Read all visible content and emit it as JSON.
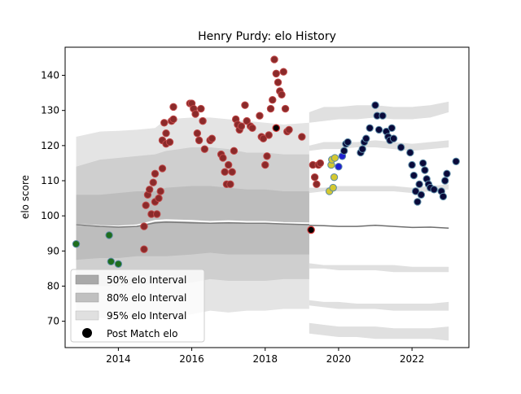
{
  "chart_data": {
    "type": "scatter",
    "title": "Henry Purdy: elo History",
    "xlabel": "",
    "ylabel": "elo score",
    "xlim": [
      2012.55,
      2023.55
    ],
    "ylim": [
      62.5,
      148
    ],
    "xticks": [
      2014,
      2016,
      2018,
      2020,
      2022
    ],
    "yticks": [
      70,
      80,
      90,
      100,
      110,
      120,
      130,
      140
    ],
    "grid": false,
    "legend_position": "lower-left",
    "legend": [
      {
        "label": "50% elo Interval",
        "kind": "patch",
        "color": "#a9a9a9"
      },
      {
        "label": "80% elo Interval",
        "kind": "patch",
        "color": "#c0c0c0"
      },
      {
        "label": "95% elo Interval",
        "kind": "patch",
        "color": "#e0e0e0"
      },
      {
        "label": "Post Match elo",
        "kind": "marker",
        "color": "#000000"
      }
    ],
    "bands_period_1": {
      "x": [
        2012.85,
        2013.5,
        2014.0,
        2014.5,
        2015.0,
        2015.3,
        2016.0,
        2016.5,
        2017.0,
        2017.5,
        2018.0,
        2018.5,
        2019.2
      ],
      "band95_upper": [
        122.5,
        124,
        124.2,
        124.5,
        125,
        127.5,
        128,
        128,
        127.5,
        127,
        126.5,
        126,
        126.5
      ],
      "band95_lower": [
        71,
        71,
        70.5,
        71,
        71,
        71,
        72,
        73,
        72.5,
        73,
        73,
        73.5,
        73.5
      ],
      "band80_upper": [
        114,
        116,
        116.5,
        117,
        117.5,
        118.5,
        119.5,
        119.5,
        119,
        118,
        118,
        117.5,
        117.5
      ],
      "band80_lower": [
        80.5,
        80,
        80,
        80.5,
        80.5,
        80.5,
        81,
        82,
        81.5,
        81.5,
        81.5,
        82,
        82
      ],
      "band50_upper": [
        106,
        106,
        106.5,
        107,
        107,
        108,
        108.5,
        108.5,
        108,
        107.5,
        107.5,
        107,
        107
      ],
      "band50_lower": [
        87.5,
        88,
        88,
        88.5,
        88.5,
        88.5,
        89,
        89.5,
        89,
        89,
        89,
        89,
        89
      ],
      "mean": [
        97.5,
        97,
        96.8,
        97,
        98,
        98.2,
        98,
        97.9,
        98,
        97.9,
        97.9,
        97.7,
        97.5
      ],
      "mean_highlight": [
        97.5,
        97.1,
        97,
        97.3,
        98.6,
        98.8,
        98.6,
        98.3,
        98.5,
        98.3,
        98.3,
        98,
        97.9
      ]
    },
    "bands_period_2": {
      "x": [
        2019.2,
        2019.6,
        2020.0,
        2020.5,
        2021.0,
        2021.5,
        2022.0,
        2022.5,
        2023.0
      ],
      "band95_upper_top": [
        129.5,
        131,
        131,
        131.5,
        131.5,
        131,
        131,
        131.5,
        132.5
      ],
      "band95_upper_bottom": [
        126.5,
        127,
        127.5,
        127.5,
        128,
        127.5,
        127.5,
        128,
        129.5
      ],
      "band80_upper_top": [
        120,
        121,
        121,
        121,
        121.5,
        121,
        120.5,
        121,
        121.5
      ],
      "band80_upper_bottom": [
        118.5,
        119,
        119,
        119.5,
        119.5,
        119,
        118.5,
        119,
        119.5
      ],
      "band80_lower_top": [
        76,
        75.5,
        75.5,
        75,
        75,
        75,
        75,
        75,
        75.5
      ],
      "band80_lower_bottom": [
        74.5,
        74,
        73.5,
        73.5,
        73.5,
        73,
        73,
        73,
        73
      ],
      "band95_lower_top": [
        69.5,
        69,
        68.5,
        68.5,
        68.5,
        68,
        68,
        68,
        68.5
      ],
      "band95_lower_bottom": [
        66.5,
        66,
        65.5,
        65.5,
        65,
        65,
        65,
        65,
        64.5
      ],
      "band50_upper_top": [
        108,
        108,
        108.5,
        108.5,
        108.5,
        108.5,
        108,
        108.5,
        109
      ],
      "band50_upper_bottom": [
        106.5,
        107,
        107,
        107,
        107,
        107,
        106.5,
        107,
        107.5
      ],
      "band50_lower_top": [
        86.5,
        86,
        86,
        86,
        86,
        86,
        85.5,
        85.5,
        85.5
      ],
      "band50_lower_bottom": [
        85,
        85,
        84.5,
        84.5,
        84.5,
        84,
        84,
        84,
        84
      ],
      "mean": [
        97.3,
        97.2,
        97,
        97,
        97.3,
        97,
        96.7,
        96.8,
        96.5
      ]
    },
    "series": [
      {
        "color": "#1e6e1e",
        "points": [
          [
            2012.85,
            92
          ],
          [
            2013.75,
            94.5
          ],
          [
            2013.8,
            87
          ],
          [
            2014.0,
            86.3
          ]
        ]
      },
      {
        "color": "#8b2a2a",
        "points": [
          [
            2014.7,
            90.5
          ],
          [
            2014.7,
            97
          ],
          [
            2014.75,
            103
          ],
          [
            2014.8,
            106
          ],
          [
            2014.85,
            107.5
          ],
          [
            2014.9,
            100.5
          ],
          [
            2014.95,
            109.5
          ],
          [
            2015.0,
            112
          ],
          [
            2015.0,
            104
          ],
          [
            2015.05,
            100.5
          ],
          [
            2015.1,
            105
          ],
          [
            2015.15,
            107
          ],
          [
            2015.2,
            113.5
          ],
          [
            2015.2,
            121.5
          ],
          [
            2015.25,
            126.5
          ],
          [
            2015.3,
            123.5
          ],
          [
            2015.3,
            120.5
          ],
          [
            2015.4,
            121
          ],
          [
            2015.45,
            127
          ],
          [
            2015.5,
            131
          ],
          [
            2015.5,
            127.5
          ],
          [
            2015.95,
            132
          ],
          [
            2016.0,
            132
          ],
          [
            2016.05,
            130.5
          ],
          [
            2016.1,
            129
          ],
          [
            2016.15,
            123.5
          ],
          [
            2016.2,
            121.5
          ],
          [
            2016.25,
            130.5
          ],
          [
            2016.3,
            127
          ],
          [
            2016.35,
            119
          ],
          [
            2016.5,
            121.5
          ],
          [
            2016.55,
            122
          ],
          [
            2016.8,
            117.5
          ],
          [
            2016.85,
            116.5
          ],
          [
            2016.9,
            112.5
          ],
          [
            2016.95,
            109
          ],
          [
            2017.0,
            114.5
          ],
          [
            2017.05,
            109
          ],
          [
            2017.1,
            112.5
          ],
          [
            2017.15,
            118.5
          ],
          [
            2017.2,
            127.5
          ],
          [
            2017.25,
            126
          ],
          [
            2017.3,
            124.5
          ],
          [
            2017.35,
            125.5
          ],
          [
            2017.45,
            131.5
          ],
          [
            2017.5,
            127
          ],
          [
            2017.6,
            125.5
          ],
          [
            2017.65,
            125
          ],
          [
            2017.85,
            128.5
          ],
          [
            2017.9,
            122.5
          ],
          [
            2017.95,
            122
          ],
          [
            2018.0,
            114.5
          ],
          [
            2018.05,
            117
          ],
          [
            2018.1,
            123
          ],
          [
            2018.15,
            130.5
          ],
          [
            2018.2,
            133
          ],
          [
            2018.25,
            144.5
          ],
          [
            2018.3,
            140.5
          ],
          [
            2018.35,
            138
          ],
          [
            2018.4,
            135.5
          ],
          [
            2018.45,
            134.5
          ],
          [
            2018.5,
            141
          ],
          [
            2018.55,
            130.5
          ],
          [
            2018.6,
            124
          ],
          [
            2018.65,
            124.5
          ],
          [
            2019.0,
            122.5
          ],
          [
            2019.3,
            114.5
          ],
          [
            2019.35,
            111
          ],
          [
            2019.4,
            109
          ],
          [
            2019.45,
            114.5
          ],
          [
            2019.5,
            115
          ]
        ]
      },
      {
        "color": "#d4c830",
        "points": [
          [
            2019.75,
            107
          ],
          [
            2019.8,
            114.5
          ],
          [
            2019.82,
            116
          ],
          [
            2019.85,
            108
          ],
          [
            2019.88,
            111
          ],
          [
            2019.9,
            116.5
          ]
        ]
      },
      {
        "color": "#2020d0",
        "points": [
          [
            2020.0,
            114
          ],
          [
            2020.1,
            117
          ]
        ]
      },
      {
        "color": "#0a0a3a",
        "points": [
          [
            2020.15,
            118.5
          ],
          [
            2020.2,
            120.5
          ],
          [
            2020.25,
            121
          ],
          [
            2020.6,
            118
          ],
          [
            2020.65,
            119
          ],
          [
            2020.7,
            121
          ],
          [
            2020.75,
            122
          ],
          [
            2020.85,
            125
          ],
          [
            2021.0,
            131.5
          ],
          [
            2021.05,
            128.5
          ],
          [
            2021.1,
            124.5
          ],
          [
            2021.2,
            128.5
          ],
          [
            2021.3,
            124
          ],
          [
            2021.35,
            122.5
          ],
          [
            2021.4,
            121.5
          ],
          [
            2021.45,
            125
          ],
          [
            2021.5,
            122
          ],
          [
            2021.7,
            119.5
          ],
          [
            2021.95,
            118
          ],
          [
            2022.0,
            114.5
          ],
          [
            2022.05,
            111.5
          ],
          [
            2022.1,
            107
          ],
          [
            2022.15,
            104
          ],
          [
            2022.2,
            109
          ],
          [
            2022.25,
            106
          ],
          [
            2022.3,
            115
          ],
          [
            2022.35,
            113
          ],
          [
            2022.4,
            110.5
          ],
          [
            2022.45,
            109
          ],
          [
            2022.5,
            108
          ],
          [
            2022.6,
            107.5
          ],
          [
            2022.8,
            107
          ],
          [
            2022.85,
            105.5
          ],
          [
            2022.9,
            110
          ],
          [
            2022.95,
            112
          ],
          [
            2023.2,
            115.5
          ]
        ]
      }
    ],
    "post_match_points": [
      [
        2018.3,
        125
      ],
      [
        2019.25,
        96
      ]
    ]
  }
}
